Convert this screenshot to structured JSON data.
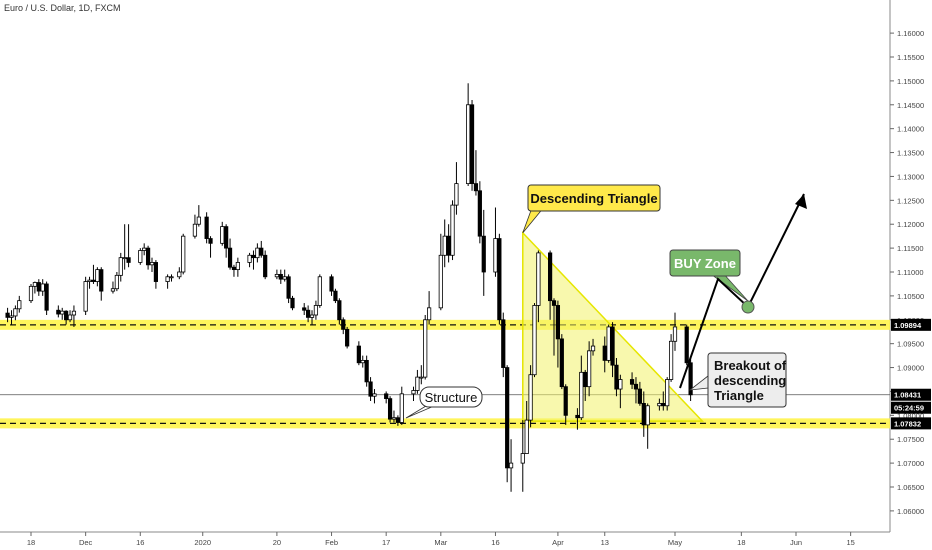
{
  "chart_data": {
    "type": "candlestick",
    "title": "Euro / U.S. Dollar, 1D, FXCM",
    "y_axis": {
      "range": [
        1.056,
        1.164
      ],
      "ticks": [
        "1.16000",
        "1.15500",
        "1.15000",
        "1.14500",
        "1.14000",
        "1.13500",
        "1.13000",
        "1.12500",
        "1.12000",
        "1.11500",
        "1.11000",
        "1.10500",
        "1.10000",
        "1.09500",
        "1.09000",
        "1.08500",
        "1.08000",
        "1.07500",
        "1.07000",
        "1.06500",
        "1.06000"
      ]
    },
    "x_axis": {
      "tick_labels": [
        {
          "label": "18",
          "date": "2019-11-18"
        },
        {
          "label": "Dec",
          "date": "2019-12-02"
        },
        {
          "label": "16",
          "date": "2019-12-16"
        },
        {
          "label": "2020",
          "date": "2020-01-01"
        },
        {
          "label": "20",
          "date": "2020-01-20"
        },
        {
          "label": "Feb",
          "date": "2020-02-03"
        },
        {
          "label": "17",
          "date": "2020-02-17"
        },
        {
          "label": "Mar",
          "date": "2020-03-02"
        },
        {
          "label": "16",
          "date": "2020-03-16"
        },
        {
          "label": "Apr",
          "date": "2020-04-01"
        },
        {
          "label": "13",
          "date": "2020-04-13"
        },
        {
          "label": "May",
          "date": "2020-05-01"
        },
        {
          "label": "18",
          "date": "2020-05-18"
        },
        {
          "label": "Jun",
          "date": "2020-06-01"
        },
        {
          "label": "15",
          "date": "2020-06-15"
        }
      ]
    },
    "candles": [
      {
        "d": "2019-11-12",
        "o": 1.1014,
        "h": 1.1025,
        "l": 1.0995,
        "c": 1.1005
      },
      {
        "d": "2019-11-13",
        "o": 1.1005,
        "h": 1.102,
        "l": 1.099,
        "c": 1.1008
      },
      {
        "d": "2019-11-14",
        "o": 1.1008,
        "h": 1.103,
        "l": 1.0999,
        "c": 1.1023
      },
      {
        "d": "2019-11-15",
        "o": 1.1023,
        "h": 1.105,
        "l": 1.1015,
        "c": 1.104
      },
      {
        "d": "2019-11-18",
        "o": 1.104,
        "h": 1.1075,
        "l": 1.1035,
        "c": 1.107
      },
      {
        "d": "2019-11-19",
        "o": 1.107,
        "h": 1.108,
        "l": 1.1055,
        "c": 1.1078
      },
      {
        "d": "2019-11-20",
        "o": 1.1078,
        "h": 1.1085,
        "l": 1.105,
        "c": 1.106
      },
      {
        "d": "2019-11-21",
        "o": 1.106,
        "h": 1.1085,
        "l": 1.105,
        "c": 1.1075
      },
      {
        "d": "2019-11-22",
        "o": 1.1075,
        "h": 1.108,
        "l": 1.101,
        "c": 1.102
      },
      {
        "d": "2019-11-25",
        "o": 1.102,
        "h": 1.103,
        "l": 1.1005,
        "c": 1.1012
      },
      {
        "d": "2019-11-26",
        "o": 1.1012,
        "h": 1.1025,
        "l": 1.1,
        "c": 1.1018
      },
      {
        "d": "2019-11-27",
        "o": 1.1018,
        "h": 1.102,
        "l": 1.099,
        "c": 1.1
      },
      {
        "d": "2019-11-28",
        "o": 1.1,
        "h": 1.102,
        "l": 1.0995,
        "c": 1.101
      },
      {
        "d": "2019-11-29",
        "o": 1.101,
        "h": 1.103,
        "l": 1.0985,
        "c": 1.1018
      },
      {
        "d": "2019-12-02",
        "o": 1.1018,
        "h": 1.109,
        "l": 1.101,
        "c": 1.108
      },
      {
        "d": "2019-12-03",
        "o": 1.108,
        "h": 1.109,
        "l": 1.1065,
        "c": 1.1083
      },
      {
        "d": "2019-12-04",
        "o": 1.1083,
        "h": 1.1115,
        "l": 1.1075,
        "c": 1.108
      },
      {
        "d": "2019-12-05",
        "o": 1.108,
        "h": 1.111,
        "l": 1.107,
        "c": 1.1105
      },
      {
        "d": "2019-12-06",
        "o": 1.1105,
        "h": 1.111,
        "l": 1.104,
        "c": 1.106
      },
      {
        "d": "2019-12-09",
        "o": 1.106,
        "h": 1.108,
        "l": 1.1055,
        "c": 1.1065
      },
      {
        "d": "2019-12-10",
        "o": 1.1065,
        "h": 1.11,
        "l": 1.106,
        "c": 1.1093
      },
      {
        "d": "2019-12-11",
        "o": 1.1093,
        "h": 1.114,
        "l": 1.108,
        "c": 1.113
      },
      {
        "d": "2019-12-12",
        "o": 1.113,
        "h": 1.12,
        "l": 1.1105,
        "c": 1.113
      },
      {
        "d": "2019-12-13",
        "o": 1.113,
        "h": 1.12,
        "l": 1.111,
        "c": 1.112
      },
      {
        "d": "2019-12-16",
        "o": 1.112,
        "h": 1.115,
        "l": 1.1115,
        "c": 1.1145
      },
      {
        "d": "2019-12-17",
        "o": 1.1145,
        "h": 1.116,
        "l": 1.1135,
        "c": 1.115
      },
      {
        "d": "2019-12-18",
        "o": 1.115,
        "h": 1.1155,
        "l": 1.1105,
        "c": 1.1115
      },
      {
        "d": "2019-12-19",
        "o": 1.1115,
        "h": 1.113,
        "l": 1.11,
        "c": 1.112
      },
      {
        "d": "2019-12-20",
        "o": 1.112,
        "h": 1.1125,
        "l": 1.1065,
        "c": 1.108
      },
      {
        "d": "2019-12-23",
        "o": 1.108,
        "h": 1.1095,
        "l": 1.1065,
        "c": 1.109
      },
      {
        "d": "2019-12-24",
        "o": 1.109,
        "h": 1.1095,
        "l": 1.108,
        "c": 1.109
      },
      {
        "d": "2019-12-26",
        "o": 1.109,
        "h": 1.111,
        "l": 1.1085,
        "c": 1.11
      },
      {
        "d": "2019-12-27",
        "o": 1.11,
        "h": 1.118,
        "l": 1.1095,
        "c": 1.1175
      },
      {
        "d": "2019-12-30",
        "o": 1.1175,
        "h": 1.122,
        "l": 1.117,
        "c": 1.12
      },
      {
        "d": "2019-12-31",
        "o": 1.12,
        "h": 1.124,
        "l": 1.1195,
        "c": 1.1215
      },
      {
        "d": "2020-01-02",
        "o": 1.1215,
        "h": 1.1225,
        "l": 1.116,
        "c": 1.117
      },
      {
        "d": "2020-01-03",
        "o": 1.117,
        "h": 1.1175,
        "l": 1.113,
        "c": 1.116
      },
      {
        "d": "2020-01-06",
        "o": 1.116,
        "h": 1.1205,
        "l": 1.1155,
        "c": 1.1195
      },
      {
        "d": "2020-01-07",
        "o": 1.1195,
        "h": 1.12,
        "l": 1.113,
        "c": 1.115
      },
      {
        "d": "2020-01-08",
        "o": 1.115,
        "h": 1.117,
        "l": 1.1105,
        "c": 1.111
      },
      {
        "d": "2020-01-09",
        "o": 1.111,
        "h": 1.1115,
        "l": 1.109,
        "c": 1.1105
      },
      {
        "d": "2020-01-10",
        "o": 1.1105,
        "h": 1.113,
        "l": 1.109,
        "c": 1.112
      },
      {
        "d": "2020-01-13",
        "o": 1.112,
        "h": 1.114,
        "l": 1.111,
        "c": 1.1135
      },
      {
        "d": "2020-01-14",
        "o": 1.1135,
        "h": 1.1145,
        "l": 1.1105,
        "c": 1.113
      },
      {
        "d": "2020-01-15",
        "o": 1.113,
        "h": 1.116,
        "l": 1.112,
        "c": 1.115
      },
      {
        "d": "2020-01-16",
        "o": 1.115,
        "h": 1.1165,
        "l": 1.113,
        "c": 1.1135
      },
      {
        "d": "2020-01-17",
        "o": 1.1135,
        "h": 1.1145,
        "l": 1.1085,
        "c": 1.109
      },
      {
        "d": "2020-01-20",
        "o": 1.109,
        "h": 1.1105,
        "l": 1.1085,
        "c": 1.1095
      },
      {
        "d": "2020-01-21",
        "o": 1.1095,
        "h": 1.1105,
        "l": 1.1075,
        "c": 1.1085
      },
      {
        "d": "2020-01-22",
        "o": 1.1085,
        "h": 1.1105,
        "l": 1.108,
        "c": 1.109
      },
      {
        "d": "2020-01-23",
        "o": 1.109,
        "h": 1.1095,
        "l": 1.1035,
        "c": 1.1045
      },
      {
        "d": "2020-01-24",
        "o": 1.1045,
        "h": 1.105,
        "l": 1.102,
        "c": 1.1025
      },
      {
        "d": "2020-01-27",
        "o": 1.1025,
        "h": 1.1035,
        "l": 1.101,
        "c": 1.102
      },
      {
        "d": "2020-01-28",
        "o": 1.102,
        "h": 1.103,
        "l": 1.0995,
        "c": 1.1005
      },
      {
        "d": "2020-01-29",
        "o": 1.1005,
        "h": 1.102,
        "l": 1.099,
        "c": 1.101
      },
      {
        "d": "2020-01-30",
        "o": 1.101,
        "h": 1.104,
        "l": 1.1,
        "c": 1.103
      },
      {
        "d": "2020-01-31",
        "o": 1.103,
        "h": 1.1095,
        "l": 1.1025,
        "c": 1.109
      },
      {
        "d": "2020-02-03",
        "o": 1.109,
        "h": 1.1095,
        "l": 1.105,
        "c": 1.106
      },
      {
        "d": "2020-02-04",
        "o": 1.106,
        "h": 1.1065,
        "l": 1.1035,
        "c": 1.104
      },
      {
        "d": "2020-02-05",
        "o": 1.104,
        "h": 1.1045,
        "l": 1.099,
        "c": 1.1
      },
      {
        "d": "2020-02-06",
        "o": 1.1,
        "h": 1.1005,
        "l": 1.097,
        "c": 1.098
      },
      {
        "d": "2020-02-07",
        "o": 1.098,
        "h": 1.0985,
        "l": 1.094,
        "c": 1.0945
      },
      {
        "d": "2020-02-10",
        "o": 1.0945,
        "h": 1.0955,
        "l": 1.0905,
        "c": 1.091
      },
      {
        "d": "2020-02-11",
        "o": 1.091,
        "h": 1.0925,
        "l": 1.09,
        "c": 1.0915
      },
      {
        "d": "2020-02-12",
        "o": 1.0915,
        "h": 1.0925,
        "l": 1.086,
        "c": 1.087
      },
      {
        "d": "2020-02-13",
        "o": 1.087,
        "h": 1.088,
        "l": 1.083,
        "c": 1.084
      },
      {
        "d": "2020-02-14",
        "o": 1.084,
        "h": 1.0855,
        "l": 1.0825,
        "c": 1.0845
      },
      {
        "d": "2020-02-17",
        "o": 1.0845,
        "h": 1.085,
        "l": 1.0825,
        "c": 1.0835
      },
      {
        "d": "2020-02-18",
        "o": 1.0835,
        "h": 1.084,
        "l": 1.0785,
        "c": 1.0792
      },
      {
        "d": "2020-02-19",
        "o": 1.0792,
        "h": 1.081,
        "l": 1.0785,
        "c": 1.0795
      },
      {
        "d": "2020-02-20",
        "o": 1.0795,
        "h": 1.08,
        "l": 1.0778,
        "c": 1.0785
      },
      {
        "d": "2020-02-21",
        "o": 1.0785,
        "h": 1.086,
        "l": 1.078,
        "c": 1.0845
      },
      {
        "d": "2020-02-24",
        "o": 1.0845,
        "h": 1.086,
        "l": 1.083,
        "c": 1.0852
      },
      {
        "d": "2020-02-25",
        "o": 1.0852,
        "h": 1.0895,
        "l": 1.0845,
        "c": 1.088
      },
      {
        "d": "2020-02-26",
        "o": 1.088,
        "h": 1.0905,
        "l": 1.0865,
        "c": 1.088
      },
      {
        "d": "2020-02-27",
        "o": 1.088,
        "h": 1.101,
        "l": 1.0875,
        "c": 1.1
      },
      {
        "d": "2020-02-28",
        "o": 1.1,
        "h": 1.106,
        "l": 1.099,
        "c": 1.1025
      },
      {
        "d": "2020-03-02",
        "o": 1.1025,
        "h": 1.118,
        "l": 1.102,
        "c": 1.1135
      },
      {
        "d": "2020-03-03",
        "o": 1.1135,
        "h": 1.121,
        "l": 1.111,
        "c": 1.1175
      },
      {
        "d": "2020-03-04",
        "o": 1.1175,
        "h": 1.12,
        "l": 1.112,
        "c": 1.1135
      },
      {
        "d": "2020-03-05",
        "o": 1.1135,
        "h": 1.125,
        "l": 1.1125,
        "c": 1.124
      },
      {
        "d": "2020-03-06",
        "o": 1.124,
        "h": 1.133,
        "l": 1.122,
        "c": 1.1285
      },
      {
        "d": "2020-03-09",
        "o": 1.1285,
        "h": 1.1495,
        "l": 1.128,
        "c": 1.145
      },
      {
        "d": "2020-03-10",
        "o": 1.145,
        "h": 1.146,
        "l": 1.127,
        "c": 1.1285
      },
      {
        "d": "2020-03-11",
        "o": 1.1285,
        "h": 1.1355,
        "l": 1.126,
        "c": 1.127
      },
      {
        "d": "2020-03-12",
        "o": 1.127,
        "h": 1.129,
        "l": 1.116,
        "c": 1.1175
      },
      {
        "d": "2020-03-13",
        "o": 1.1175,
        "h": 1.123,
        "l": 1.105,
        "c": 1.11
      },
      {
        "d": "2020-03-16",
        "o": 1.11,
        "h": 1.1235,
        "l": 1.109,
        "c": 1.117
      },
      {
        "d": "2020-03-17",
        "o": 1.117,
        "h": 1.118,
        "l": 1.099,
        "c": 1.1
      },
      {
        "d": "2020-03-18",
        "o": 1.1,
        "h": 1.1015,
        "l": 1.088,
        "c": 1.09
      },
      {
        "d": "2020-03-19",
        "o": 1.09,
        "h": 1.0905,
        "l": 1.066,
        "c": 1.069
      },
      {
        "d": "2020-03-20",
        "o": 1.069,
        "h": 1.075,
        "l": 1.064,
        "c": 1.07
      },
      {
        "d": "2020-03-23",
        "o": 1.07,
        "h": 1.079,
        "l": 1.064,
        "c": 1.072
      },
      {
        "d": "2020-03-24",
        "o": 1.072,
        "h": 1.083,
        "l": 1.072,
        "c": 1.079
      },
      {
        "d": "2020-03-25",
        "o": 1.079,
        "h": 1.0905,
        "l": 1.0775,
        "c": 1.0885
      },
      {
        "d": "2020-03-26",
        "o": 1.0885,
        "h": 1.1035,
        "l": 1.088,
        "c": 1.103
      },
      {
        "d": "2020-03-27",
        "o": 1.103,
        "h": 1.1145,
        "l": 1.0995,
        "c": 1.114
      },
      {
        "d": "2020-03-30",
        "o": 1.114,
        "h": 1.1145,
        "l": 1.1,
        "c": 1.104
      },
      {
        "d": "2020-03-31",
        "o": 1.104,
        "h": 1.1045,
        "l": 1.0925,
        "c": 1.103
      },
      {
        "d": "2020-04-01",
        "o": 1.103,
        "h": 1.104,
        "l": 1.09,
        "c": 1.096
      },
      {
        "d": "2020-04-02",
        "o": 1.096,
        "h": 1.097,
        "l": 1.0855,
        "c": 1.086
      },
      {
        "d": "2020-04-03",
        "o": 1.086,
        "h": 1.0865,
        "l": 1.078,
        "c": 1.08
      },
      {
        "d": "2020-04-06",
        "o": 1.08,
        "h": 1.0815,
        "l": 1.077,
        "c": 1.0795
      },
      {
        "d": "2020-04-07",
        "o": 1.0795,
        "h": 1.0925,
        "l": 1.079,
        "c": 1.089
      },
      {
        "d": "2020-04-08",
        "o": 1.089,
        "h": 1.0895,
        "l": 1.083,
        "c": 1.086
      },
      {
        "d": "2020-04-09",
        "o": 1.086,
        "h": 1.0955,
        "l": 1.084,
        "c": 1.0935
      },
      {
        "d": "2020-04-10",
        "o": 1.0935,
        "h": 1.096,
        "l": 1.0925,
        "c": 1.0945
      },
      {
        "d": "2020-04-13",
        "o": 1.0945,
        "h": 1.0965,
        "l": 1.089,
        "c": 1.0915
      },
      {
        "d": "2020-04-14",
        "o": 1.0915,
        "h": 1.099,
        "l": 1.091,
        "c": 1.0985
      },
      {
        "d": "2020-04-15",
        "o": 1.0985,
        "h": 1.0995,
        "l": 1.088,
        "c": 1.0905
      },
      {
        "d": "2020-04-16",
        "o": 1.0905,
        "h": 1.092,
        "l": 1.084,
        "c": 1.0855
      },
      {
        "d": "2020-04-17",
        "o": 1.0855,
        "h": 1.0885,
        "l": 1.0815,
        "c": 1.0875
      },
      {
        "d": "2020-04-20",
        "o": 1.0875,
        "h": 1.089,
        "l": 1.0855,
        "c": 1.0865
      },
      {
        "d": "2020-04-21",
        "o": 1.0865,
        "h": 1.088,
        "l": 1.0825,
        "c": 1.0855
      },
      {
        "d": "2020-04-22",
        "o": 1.0855,
        "h": 1.087,
        "l": 1.082,
        "c": 1.0825
      },
      {
        "d": "2020-04-23",
        "o": 1.0825,
        "h": 1.085,
        "l": 1.0755,
        "c": 1.078
      },
      {
        "d": "2020-04-24",
        "o": 1.078,
        "h": 1.0825,
        "l": 1.073,
        "c": 1.082
      },
      {
        "d": "2020-04-27",
        "o": 1.082,
        "h": 1.0835,
        "l": 1.081,
        "c": 1.0825
      },
      {
        "d": "2020-04-28",
        "o": 1.0825,
        "h": 1.085,
        "l": 1.081,
        "c": 1.082
      },
      {
        "d": "2020-04-29",
        "o": 1.082,
        "h": 1.088,
        "l": 1.081,
        "c": 1.0875
      },
      {
        "d": "2020-04-30",
        "o": 1.0875,
        "h": 1.097,
        "l": 1.087,
        "c": 1.0955
      },
      {
        "d": "2020-05-01",
        "o": 1.0955,
        "h": 1.1015,
        "l": 1.0935,
        "c": 1.0985
      },
      {
        "d": "2020-05-04",
        "o": 1.0985,
        "h": 1.099,
        "l": 1.0905,
        "c": 1.091
      },
      {
        "d": "2020-05-05",
        "o": 1.091,
        "h": 1.092,
        "l": 1.083,
        "c": 1.0843
      }
    ],
    "horizontal_levels": [
      {
        "price": 1.09894,
        "label": "1.09894",
        "style": "dashed"
      },
      {
        "price": 1.07832,
        "label": "1.07832",
        "style": "dashed"
      },
      {
        "price": 1.08431,
        "label": "1.08431",
        "style": "solid"
      }
    ],
    "current_price_label": "1.08431",
    "countdown_label": "05:24:59",
    "annotations": {
      "triangle": {
        "label": "Descending Triangle"
      },
      "buy_zone": {
        "label": "BUY Zone"
      },
      "structure": {
        "label": "Structure"
      },
      "breakout": {
        "lines": [
          "Breakout of",
          "descending",
          "Triangle"
        ]
      }
    },
    "colors": {
      "background": "#ffffff",
      "up_candle": "#ffffff",
      "down_candle": "#000000",
      "candle_outline": "#000000",
      "level_band": "#fff44a",
      "triangle_fill": "#f2f26a",
      "triangle_label_bg": "#ffe94a",
      "buy_zone_bg": "#79b86b",
      "callout_bg": "#ededed",
      "price_tag_black": "#000000"
    }
  }
}
